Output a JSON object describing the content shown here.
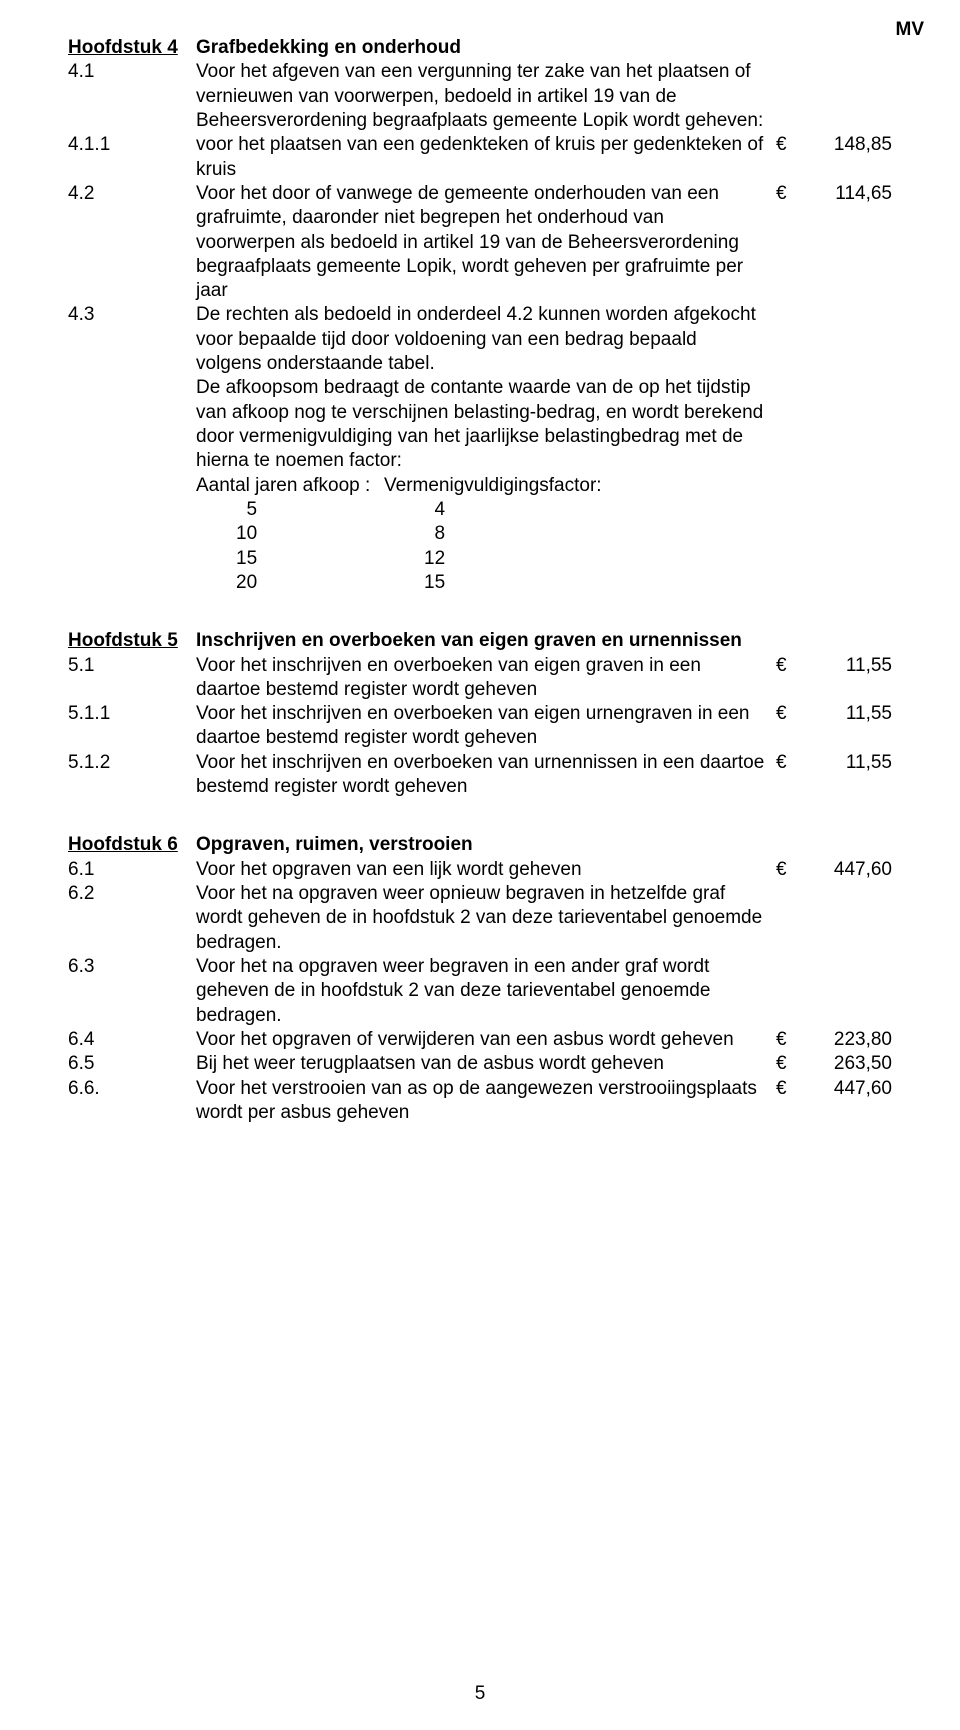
{
  "top_marker": "MV",
  "page_number": "5",
  "hoofdstuk4": {
    "num": "Hoofdstuk 4",
    "title": "Grafbedekking en onderhoud",
    "items": {
      "41": {
        "num": "4.1",
        "text": "Voor het afgeven van een vergunning ter zake van het plaatsen of vernieuwen van voorwerpen, bedoeld in artikel 19 van de Beheersverordening begraafplaats gemeente Lopik wordt geheven:"
      },
      "411": {
        "num": "4.1.1",
        "text": "voor het plaatsen van een gedenkteken of kruis per gedenkteken of kruis",
        "cur": "€",
        "val": "148,85"
      },
      "42": {
        "num": "4.2",
        "text": "Voor het door of vanwege de gemeente onderhouden van een grafruimte, daaronder niet begrepen het onderhoud van voorwerpen als bedoeld in artikel 19 van de Beheersverordening begraafplaats gemeente Lopik, wordt geheven per grafruimte per jaar",
        "cur": "€",
        "val": "114,65"
      },
      "43": {
        "num": "4.3",
        "text": "De rechten als bedoeld in onderdeel 4.2 kunnen worden afgekocht voor bepaalde tijd door voldoening van een bedrag bepaald volgens onderstaande tabel.",
        "text2": "De afkoopsom bedraagt de contante waarde van de op het tijdstip van afkoop nog te verschijnen belasting-bedrag, en wordt berekend door vermenigvuldiging van het jaarlijkse belastingbedrag met de hierna te noemen factor:",
        "tabhead_l": "Aantal jaren afkoop :",
        "tabhead_r": "Vermenigvuldigingsfactor:",
        "table": [
          {
            "l": "  5",
            "r": "  4"
          },
          {
            "l": "10",
            "r": "  8"
          },
          {
            "l": "15",
            "r": "12"
          },
          {
            "l": "20",
            "r": "15"
          }
        ]
      }
    }
  },
  "hoofdstuk5": {
    "num": "Hoofdstuk 5",
    "title": "Inschrijven en overboeken van eigen graven en urnennissen",
    "items": {
      "51": {
        "num": "5.1",
        "text": "Voor het inschrijven en overboeken van eigen graven in een daartoe bestemd register wordt geheven",
        "cur": "€",
        "val": "11,55"
      },
      "511": {
        "num": "5.1.1",
        "text": "Voor het inschrijven en overboeken van eigen urnengraven in een daartoe bestemd register wordt geheven",
        "cur": "€",
        "val": "11,55"
      },
      "512": {
        "num": "5.1.2",
        "text": "Voor het inschrijven en overboeken van urnennissen in een daartoe bestemd register wordt geheven",
        "cur": "€",
        "val": "11,55"
      }
    }
  },
  "hoofdstuk6": {
    "num": "Hoofdstuk 6",
    "title": "Opgraven, ruimen, verstrooien",
    "items": {
      "61": {
        "num": "6.1",
        "text": "Voor het opgraven van een lijk wordt geheven",
        "cur": "€",
        "val": "447,60"
      },
      "62": {
        "num": "6.2",
        "text": "Voor het na opgraven weer opnieuw begraven in hetzelfde graf wordt geheven de in hoofdstuk 2 van deze tarieventabel genoemde bedragen."
      },
      "63": {
        "num": "6.3",
        "text": "Voor het na opgraven weer begraven in een ander graf wordt geheven de in hoofdstuk 2 van deze tarieventabel genoemde bedragen."
      },
      "64": {
        "num": "6.4",
        "text": "Voor het opgraven of verwijderen van een asbus wordt geheven",
        "cur": "€",
        "val": "223,80"
      },
      "65": {
        "num": "6.5",
        "text": "Bij het weer terugplaatsen van de asbus wordt geheven",
        "cur": "€",
        "val": "263,50"
      },
      "66": {
        "num": "6.6.",
        "text": "Voor het verstrooien van as op de aangewezen verstrooiingsplaats wordt per asbus geheven",
        "cur": "€",
        "val": "447,60"
      }
    }
  }
}
